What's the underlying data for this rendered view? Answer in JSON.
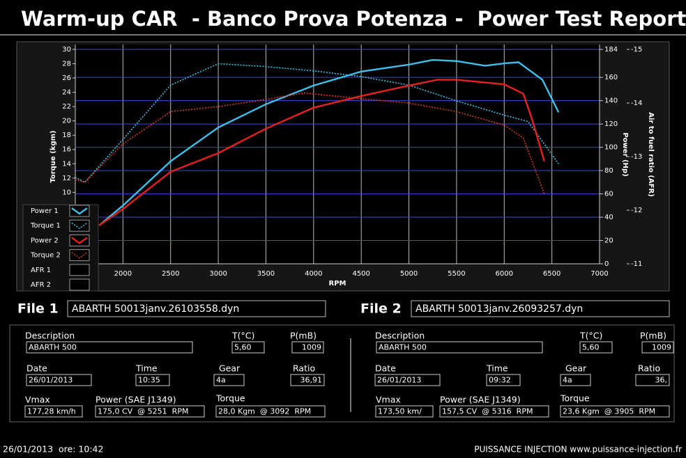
{
  "header": {
    "title": "Warm-up CAR  - Banco Prova Potenza -  Power Test Report"
  },
  "chart_data": {
    "type": "line",
    "x_label": "RPM",
    "y_label": "Torque (kgm)",
    "y2_label": "Power (Hp)",
    "y3_label": "Air to fuel ratio (AFR)",
    "xlim": [
      1500,
      7000
    ],
    "xticks": [
      2000,
      2500,
      3000,
      3500,
      4000,
      4500,
      5000,
      5500,
      6000,
      6500,
      7000
    ],
    "ylim": [
      0,
      30
    ],
    "yticks": [
      10,
      12,
      14,
      16,
      18,
      20,
      22,
      24,
      26,
      28,
      30
    ],
    "y2lim": [
      0,
      184
    ],
    "y2ticks": [
      0,
      20,
      40,
      60,
      80,
      100,
      120,
      140,
      160,
      184
    ],
    "y3lim": [
      -11,
      -15
    ],
    "y3ticks": [
      -11,
      -12,
      -13,
      -14,
      -15
    ],
    "grid": true,
    "series": [
      {
        "name": "Power 1",
        "color": "#3cc0ee",
        "style": "solid",
        "axis": "y2",
        "x": [
          1750,
          2000,
          2500,
          3000,
          3500,
          4000,
          4500,
          5000,
          5250,
          5500,
          5800,
          6000,
          6150,
          6400,
          6570
        ],
        "values": [
          33,
          50,
          88,
          117,
          137,
          153,
          165,
          171,
          175,
          174,
          170,
          172,
          173,
          158,
          130
        ]
      },
      {
        "name": "Torque 1",
        "color": "#3cc0ee",
        "style": "dotted",
        "axis": "y",
        "x": [
          1500,
          1600,
          2000,
          2500,
          3000,
          3500,
          4000,
          4500,
          5000,
          5500,
          6000,
          6250,
          6570
        ],
        "values": [
          12.1,
          11.4,
          17.4,
          25,
          28,
          27.6,
          27,
          26.2,
          25,
          22.8,
          20.8,
          19.9,
          14
        ]
      },
      {
        "name": "Power 2",
        "color": "#e82020",
        "style": "solid",
        "axis": "y2",
        "x": [
          1750,
          2000,
          2500,
          3000,
          3500,
          4000,
          4500,
          5000,
          5300,
          5500,
          6000,
          6200,
          6300,
          6420
        ],
        "values": [
          33,
          47,
          79,
          95,
          116,
          134,
          144,
          153,
          158,
          158,
          154,
          146,
          122,
          88
        ]
      },
      {
        "name": "Torque 2",
        "color": "#d83a20",
        "style": "dotted",
        "axis": "y",
        "x": [
          1500,
          1600,
          2000,
          2500,
          3000,
          3500,
          3900,
          4500,
          5000,
          5500,
          6000,
          6200,
          6420
        ],
        "values": [
          11.8,
          11.4,
          16.8,
          21.3,
          22,
          23,
          23.9,
          23.1,
          22.5,
          21.3,
          19.4,
          17.6,
          9.8
        ]
      },
      {
        "name": "AFR 1",
        "color": "#ffffff",
        "style": "solid",
        "axis": "y3",
        "x": [],
        "values": []
      },
      {
        "name": "AFR 2",
        "color": "#ffffff",
        "style": "solid",
        "axis": "y3",
        "x": [],
        "values": []
      }
    ]
  },
  "files": [
    {
      "label": "File 1",
      "filename": "ABARTH 50013janv.26103558.dyn",
      "description_label": "Description",
      "description": "ABARTH 500",
      "t_label": "T(°C)",
      "t": "5,60",
      "p_label": "P(mB)",
      "p": "1009",
      "date_label": "Date",
      "date": "26/01/2013",
      "time_label": "Time",
      "time": "10:35",
      "gear_label": "Gear",
      "gear": "4a",
      "ratio_label": "Ratio",
      "ratio": "36,91",
      "vmax_label": "Vmax",
      "vmax": "177,28 km/h",
      "power_label": "Power (SAE J1349)",
      "power": "175,0 CV  @ 5251  RPM",
      "torque_label": "Torque",
      "torque": "28,0 Kgm  @ 3092  RPM"
    },
    {
      "label": "File 2",
      "filename": "ABARTH 50013janv.26093257.dyn",
      "description_label": "Description",
      "description": "ABARTH 500",
      "t_label": "T(°C)",
      "t": "5,60",
      "p_label": "P(mB)",
      "p": "1009",
      "date_label": "Date",
      "date": "26/01/2013",
      "time_label": "Time",
      "time": "09:32",
      "gear_label": "Gear",
      "gear": "4a",
      "ratio_label": "Ratio",
      "ratio": "36,",
      "vmax_label": "Vmax",
      "vmax": "173,50 km/",
      "power_label": "Power (SAE J1349)",
      "power": "157,5 CV  @ 5316  RPM",
      "torque_label": "Torque",
      "torque": "23,6 Kgm  @ 3905  RPM"
    }
  ],
  "footer": {
    "datetime": "26/01/2013  ore: 10:42",
    "credit": "PUISSANCE INJECTION www.puissance-injection.fr"
  }
}
